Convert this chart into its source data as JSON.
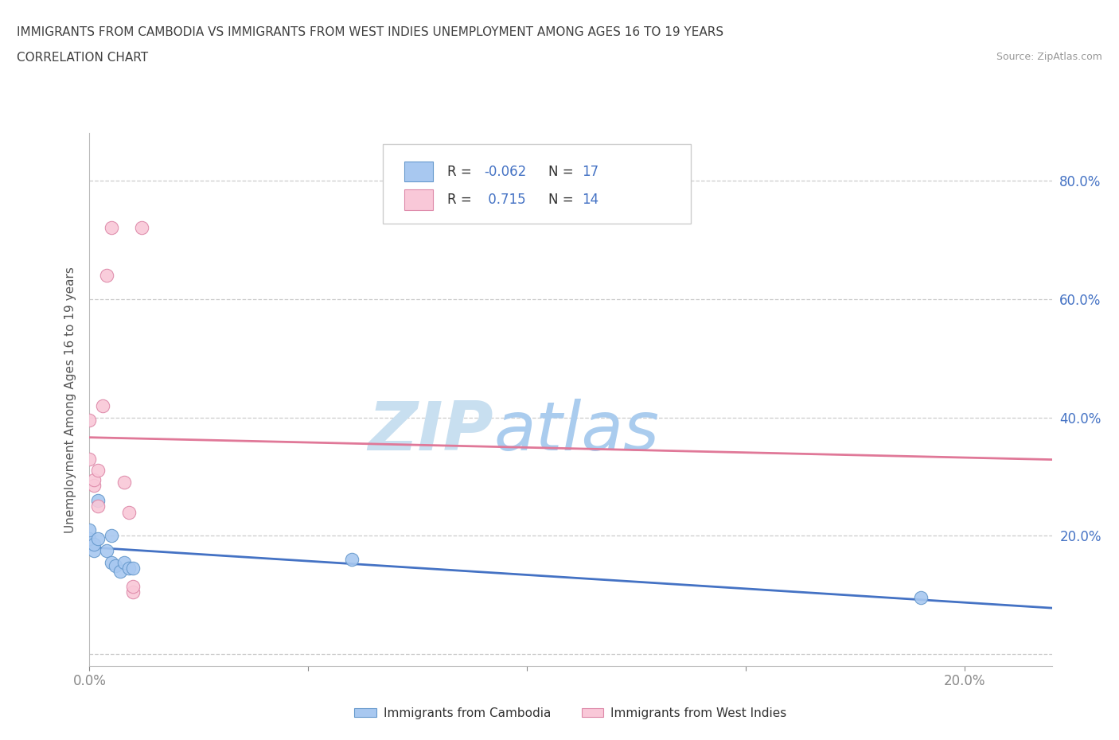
{
  "title_line1": "IMMIGRANTS FROM CAMBODIA VS IMMIGRANTS FROM WEST INDIES UNEMPLOYMENT AMONG AGES 16 TO 19 YEARS",
  "title_line2": "CORRELATION CHART",
  "source": "Source: ZipAtlas.com",
  "ylabel": "Unemployment Among Ages 16 to 19 years",
  "watermark_zip": "ZIP",
  "watermark_atlas": "atlas",
  "xlim": [
    0.0,
    0.22
  ],
  "ylim": [
    -0.02,
    0.88
  ],
  "xticks": [
    0.0,
    0.05,
    0.1,
    0.15,
    0.2
  ],
  "xticklabels": [
    "0.0%",
    "",
    "",
    "",
    "20.0%"
  ],
  "yticks": [
    0.0,
    0.2,
    0.4,
    0.6,
    0.8
  ],
  "yticklabels": [
    "",
    "20.0%",
    "40.0%",
    "60.0%",
    "80.0%"
  ],
  "cambodia_color": "#a8c8f0",
  "cambodia_edge_color": "#6699cc",
  "cambodia_line_color": "#4472c4",
  "westindies_color": "#f9c8d8",
  "westindies_edge_color": "#dd88a8",
  "westindies_line_color": "#e07898",
  "title_color": "#404040",
  "source_color": "#999999",
  "grid_color": "#cccccc",
  "watermark_zip_color": "#c8dff0",
  "watermark_atlas_color": "#aaccee",
  "legend_text_color": "#333333",
  "legend_value_color": "#4472c4",
  "axis_label_color": "#4472c4",
  "cambodia_x": [
    0.0,
    0.0,
    0.0,
    0.001,
    0.001,
    0.002,
    0.002,
    0.004,
    0.005,
    0.005,
    0.006,
    0.007,
    0.008,
    0.009,
    0.01,
    0.06,
    0.19
  ],
  "cambodia_y": [
    0.185,
    0.195,
    0.21,
    0.175,
    0.185,
    0.195,
    0.26,
    0.175,
    0.155,
    0.2,
    0.15,
    0.14,
    0.155,
    0.145,
    0.145,
    0.16,
    0.095
  ],
  "westindies_x": [
    0.0,
    0.0,
    0.001,
    0.001,
    0.002,
    0.002,
    0.003,
    0.004,
    0.005,
    0.008,
    0.009,
    0.01,
    0.01,
    0.012
  ],
  "westindies_y": [
    0.395,
    0.33,
    0.285,
    0.295,
    0.31,
    0.25,
    0.42,
    0.64,
    0.72,
    0.29,
    0.24,
    0.105,
    0.115,
    0.72
  ]
}
